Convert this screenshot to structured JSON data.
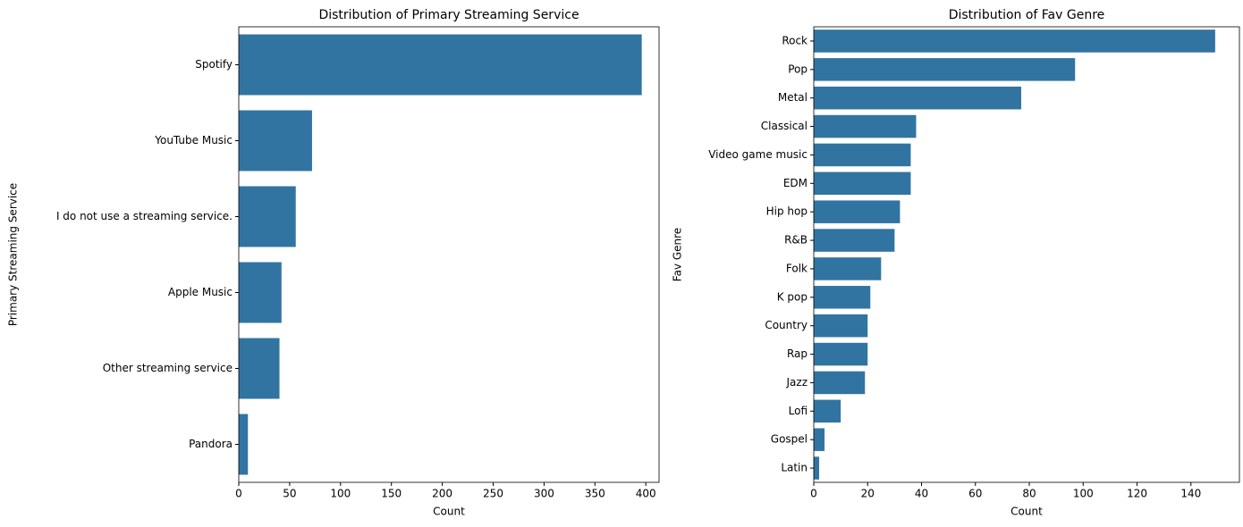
{
  "chart_data": [
    {
      "type": "barh",
      "title": "Distribution of Primary Streaming Service",
      "xlabel": "Count",
      "ylabel": "Primary Streaming Service",
      "categories": [
        "Spotify",
        "YouTube Music",
        "I do not use a streaming service.",
        "Apple Music",
        "Other streaming service",
        "Pandora"
      ],
      "values": [
        396,
        72,
        56,
        42,
        40,
        9
      ],
      "color": "#3274a1",
      "xlim": [
        0,
        413
      ],
      "xticks": [
        0,
        50,
        100,
        150,
        200,
        250,
        300,
        350,
        400
      ]
    },
    {
      "type": "barh",
      "title": "Distribution of Fav Genre",
      "xlabel": "Count",
      "ylabel": "Fav Genre",
      "categories": [
        "Rock",
        "Pop",
        "Metal",
        "Classical",
        "Video game music",
        "EDM",
        "Hip hop",
        "R&B",
        "Folk",
        "K pop",
        "Country",
        "Rap",
        "Jazz",
        "Lofi",
        "Gospel",
        "Latin"
      ],
      "values": [
        149,
        97,
        77,
        38,
        36,
        36,
        32,
        30,
        25,
        21,
        20,
        20,
        19,
        10,
        4,
        2
      ],
      "color": "#3274a1",
      "xlim": [
        0,
        158
      ],
      "xticks": [
        0,
        20,
        40,
        60,
        80,
        100,
        120,
        140
      ]
    }
  ]
}
